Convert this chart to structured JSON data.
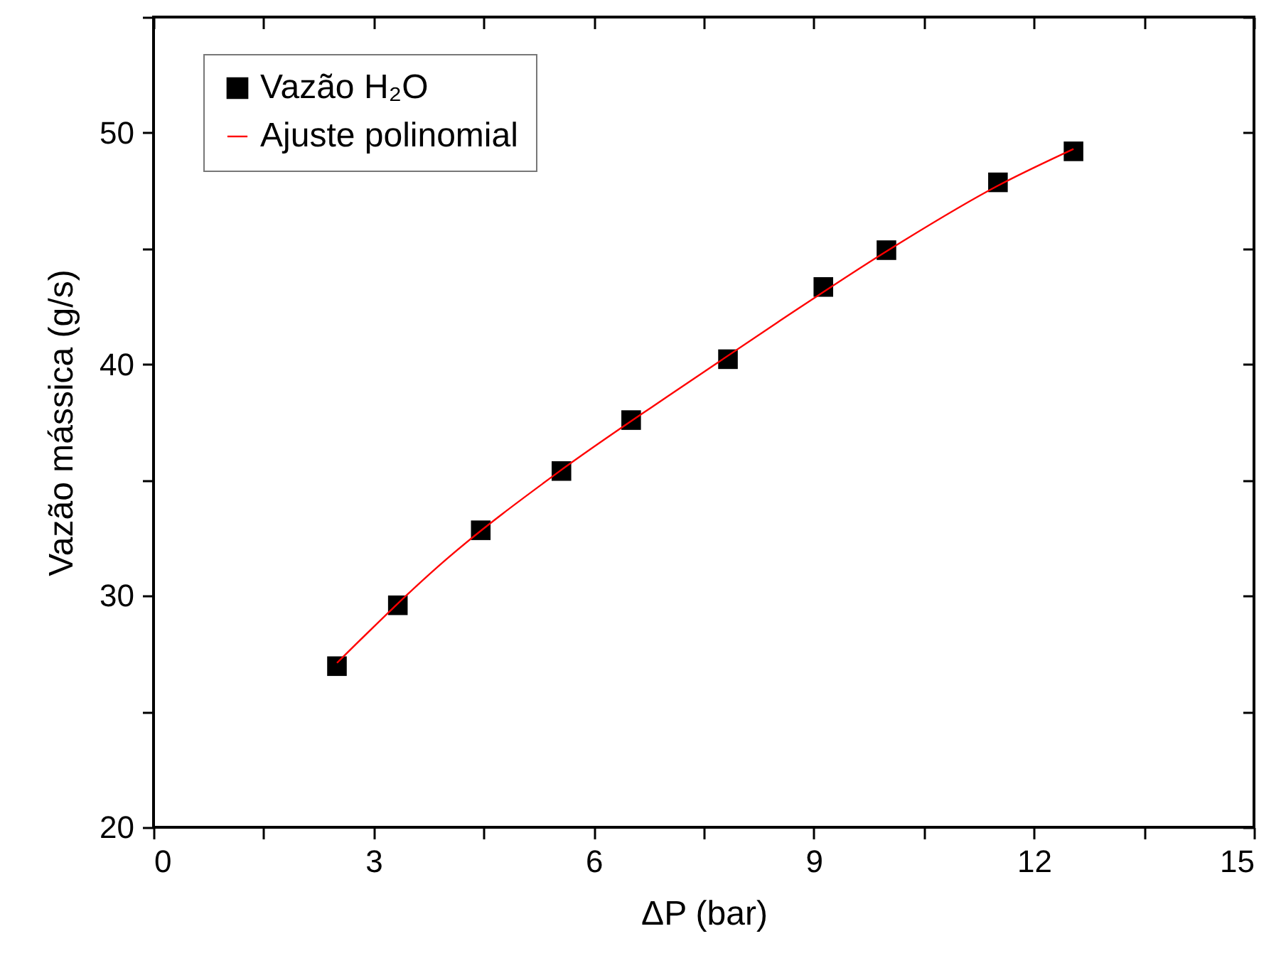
{
  "chart_data": {
    "type": "scatter",
    "xlabel": "ΔP (bar)",
    "ylabel": "Vazão mássica (g/s)",
    "xlim": [
      0,
      15
    ],
    "ylim": [
      20,
      55
    ],
    "xticks": [
      0,
      {
        "value": 1.5,
        "label": null
      },
      3,
      {
        "value": 4.5,
        "label": null
      },
      6,
      {
        "value": 7.5,
        "label": null
      },
      9,
      {
        "value": 10.5,
        "label": null
      },
      12,
      {
        "value": 13.5,
        "label": null
      },
      15
    ],
    "yticks": [
      20,
      {
        "value": 25,
        "label": null
      },
      30,
      {
        "value": 35,
        "label": null
      },
      40,
      {
        "value": 45,
        "label": null
      },
      50,
      {
        "value": 55,
        "label": null
      }
    ],
    "grid": false,
    "legend": "top left",
    "series": [
      {
        "name": "Vazão H₂O",
        "marker": "square",
        "color": "#000000",
        "x": [
          2.5,
          3.33,
          4.46,
          5.56,
          6.51,
          7.83,
          9.13,
          9.99,
          11.51,
          12.54
        ],
        "values": [
          26.96,
          29.59,
          32.83,
          35.39,
          37.59,
          40.22,
          43.34,
          44.93,
          47.86,
          49.2
        ]
      },
      {
        "name": "Ajuste polinomial",
        "type": "line",
        "marker": "none",
        "line_style": "solid",
        "color": "#ff0000",
        "x": [
          2.5,
          4,
          5.5,
          7,
          8.5,
          10,
          11.5,
          12.54
        ],
        "values": [
          27.1,
          31.6,
          35.3,
          38.6,
          41.8,
          44.9,
          47.7,
          49.3
        ]
      }
    ]
  }
}
